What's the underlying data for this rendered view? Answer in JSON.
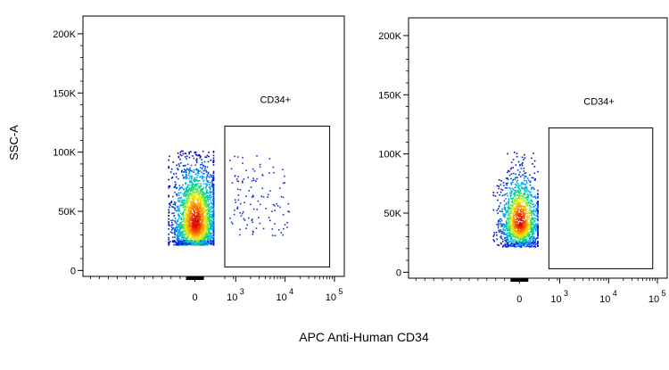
{
  "shared_ylabel": "SSC-A",
  "shared_xlabel": "APC Anti-Human CD34",
  "chart_data": [
    {
      "type": "scatter",
      "plot": "left",
      "ylabel": "SSC-A",
      "xlabel": "APC Anti-Human CD34",
      "yscale": "linear",
      "xscale": "biexponential",
      "ylim": [
        -5000,
        215000
      ],
      "yticks": [
        {
          "value": 0,
          "label": "0"
        },
        {
          "value": 50000,
          "label": "50K"
        },
        {
          "value": 100000,
          "label": "100K"
        },
        {
          "value": 150000,
          "label": "150K"
        },
        {
          "value": 200000,
          "label": "200K"
        }
      ],
      "xticks": [
        {
          "value": 0,
          "label": "0",
          "sup": ""
        },
        {
          "value": 1000,
          "label": "10",
          "sup": "3"
        },
        {
          "value": 10000,
          "label": "10",
          "sup": "4"
        },
        {
          "value": 100000,
          "label": "10",
          "sup": "5"
        }
      ],
      "gate": {
        "label": "CD34+",
        "x_range": [
          600,
          80000
        ],
        "y_range": [
          3000,
          122000
        ]
      },
      "populations": [
        {
          "name": "negative",
          "x_center": 0,
          "y_center": 40000,
          "x_spread": 0.09,
          "y_spread": 17000,
          "n": 2400
        },
        {
          "name": "positive",
          "x_range": [
            700,
            12000
          ],
          "y_range": [
            30000,
            98000
          ],
          "n": 120
        }
      ]
    },
    {
      "type": "scatter",
      "plot": "right",
      "ylabel": "",
      "xlabel": "APC Anti-Human CD34",
      "yscale": "linear",
      "xscale": "biexponential",
      "ylim": [
        -5000,
        215000
      ],
      "yticks": [
        {
          "value": 0,
          "label": "0"
        },
        {
          "value": 50000,
          "label": "50K"
        },
        {
          "value": 100000,
          "label": "100K"
        },
        {
          "value": 150000,
          "label": "150K"
        },
        {
          "value": 200000,
          "label": "200K"
        }
      ],
      "xticks": [
        {
          "value": 0,
          "label": "0",
          "sup": ""
        },
        {
          "value": 1000,
          "label": "10",
          "sup": "3"
        },
        {
          "value": 10000,
          "label": "10",
          "sup": "4"
        },
        {
          "value": 100000,
          "label": "10",
          "sup": "5"
        }
      ],
      "gate": {
        "label": "CD34+",
        "x_range": [
          600,
          80000
        ],
        "y_range": [
          3000,
          122000
        ]
      },
      "populations": [
        {
          "name": "negative",
          "x_center": 0,
          "y_center": 42000,
          "x_spread": 0.08,
          "y_spread": 14000,
          "n": 1500
        }
      ]
    }
  ]
}
